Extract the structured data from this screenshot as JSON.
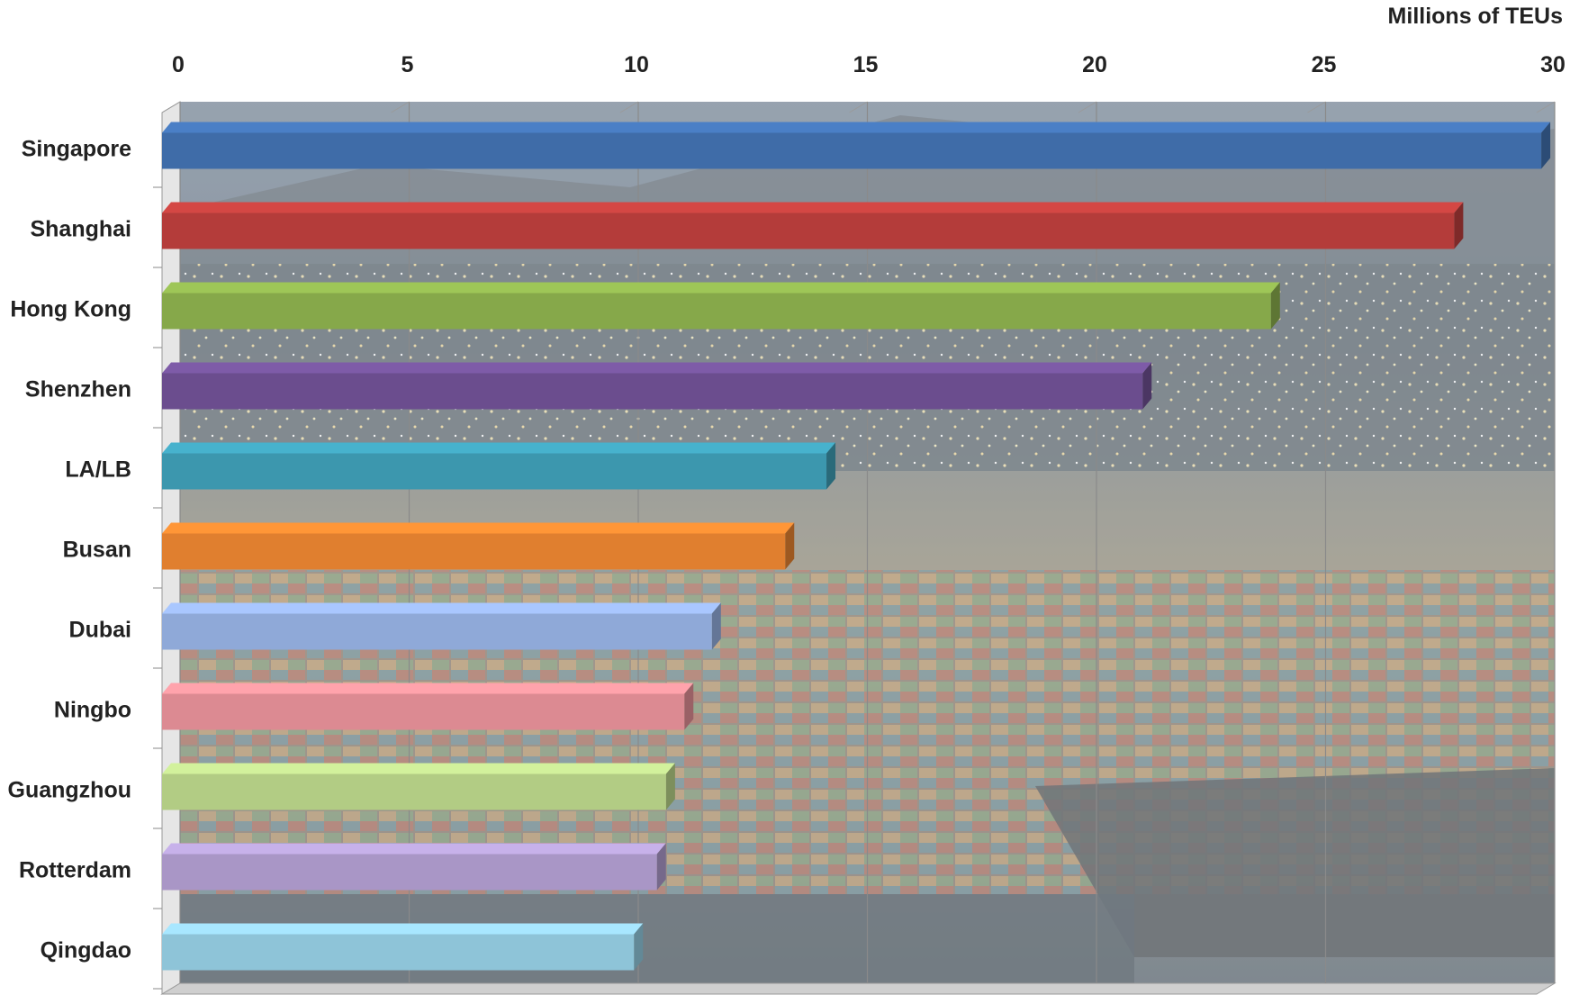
{
  "chart_data": {
    "type": "bar",
    "orientation": "horizontal",
    "unit_label": "Millions of TEUs",
    "categories": [
      "Singapore",
      "Shanghai",
      "Hong Kong",
      "Shenzhen",
      "LA/LB",
      "Busan",
      "Dubai",
      "Ningbo",
      "Guangzhou",
      "Rotterdam",
      "Qingdao"
    ],
    "values": [
      30.1,
      28.2,
      24.2,
      21.4,
      14.5,
      13.6,
      12.0,
      11.4,
      11.0,
      10.8,
      10.3
    ],
    "colors": [
      "#3f6ca8",
      "#b43c3a",
      "#86a84a",
      "#6b4d8e",
      "#3c97ae",
      "#e07f2f",
      "#8fa9d8",
      "#dc8a92",
      "#b2cc84",
      "#a996c6",
      "#8ec4d8"
    ],
    "xlim": [
      0,
      30
    ],
    "xticks": [
      "0",
      "5",
      "10",
      "15",
      "20",
      "25",
      "30"
    ],
    "xaxis_position": "top",
    "grid": true,
    "background": "port-photo"
  }
}
